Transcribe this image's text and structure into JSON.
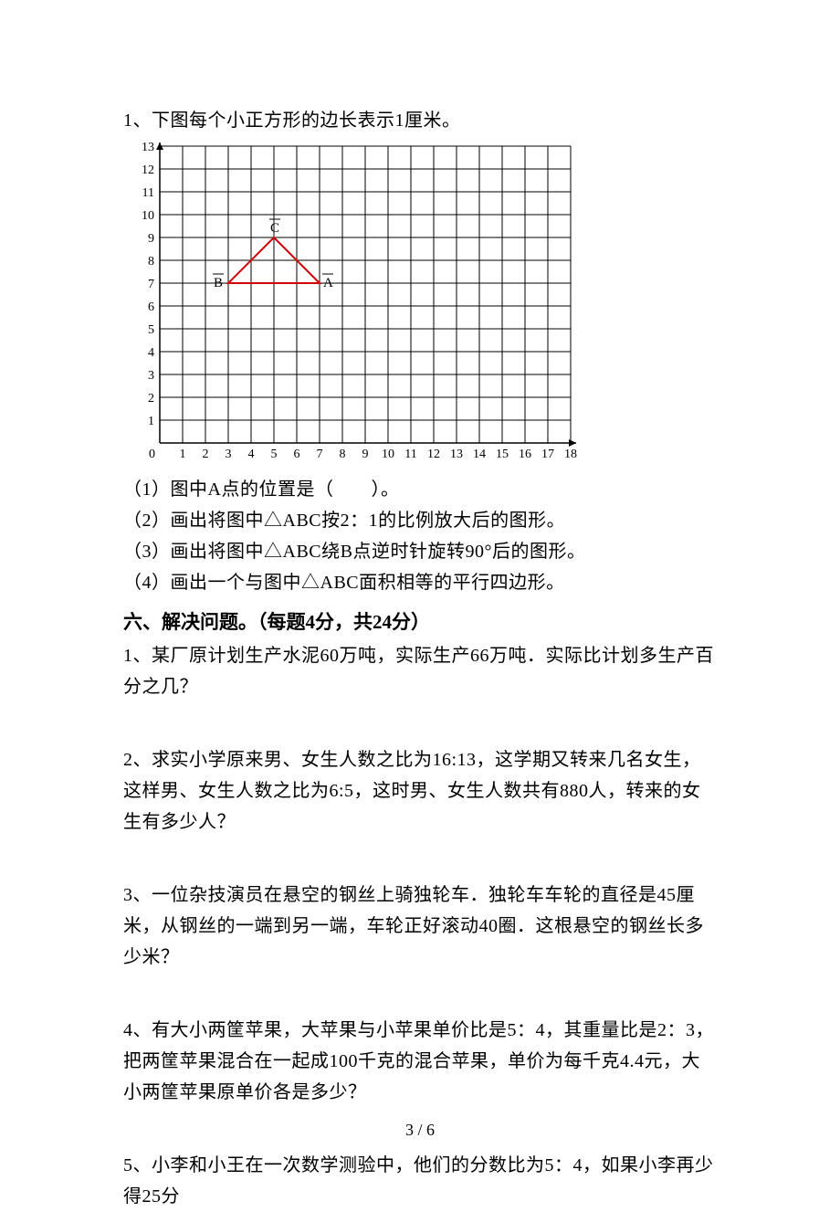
{
  "q1": {
    "prompt": "1、下图每个小正方形的边长表示1厘米。",
    "sub1": "（1）图中A点的位置是（　　）。",
    "sub2": "（2）画出将图中△ABC按2：1的比例放大后的图形。",
    "sub3": "（3）画出将图中△ABC绕B点逆时针旋转90°后的图形。",
    "sub4": "（4）画出一个与图中△ABC面积相等的平行四边形。"
  },
  "chart": {
    "x_max": 18,
    "y_max": 13,
    "cell": 25,
    "origin_label": "0",
    "x_ticks": [
      "1",
      "2",
      "3",
      "4",
      "5",
      "6",
      "7",
      "8",
      "9",
      "10",
      "11",
      "12",
      "13",
      "14",
      "15",
      "16",
      "17",
      "18"
    ],
    "y_ticks": [
      "1",
      "2",
      "3",
      "4",
      "5",
      "6",
      "7",
      "8",
      "9",
      "10",
      "11",
      "12",
      "13"
    ],
    "grid_color": "#000000",
    "triangle_color": "#d40000",
    "triangle_width": 2,
    "points": {
      "A": {
        "x": 7,
        "y": 7,
        "label": "A"
      },
      "B": {
        "x": 3,
        "y": 7,
        "label": "B"
      },
      "C": {
        "x": 5,
        "y": 9,
        "label": "C"
      }
    },
    "tick_fontsize": 14,
    "label_fontsize": 15
  },
  "section6": {
    "title": "六、解决问题。（每题4分，共24分）",
    "q1": "1、某厂原计划生产水泥60万吨，实际生产66万吨．实际比计划多生产百分之几？",
    "q2": "2、求实小学原来男、女生人数之比为16:13，这学期又转来几名女生，这样男、女生人数之比为6:5，这时男、女生人数共有880人，转来的女生有多少人？",
    "q3": "3、一位杂技演员在悬空的钢丝上骑独轮车．独轮车车轮的直径是45厘米，从钢丝的一端到另一端，车轮正好滚动40圈．这根悬空的钢丝长多少米？",
    "q4": "4、有大小两筐苹果，大苹果与小苹果单价比是5：4，其重量比是2：3，把两筐苹果混合在一起成100千克的混合苹果，单价为每千克4.4元，大小两筐苹果原单价各是多少？",
    "q5": "5、小李和小王在一次数学测验中，他们的分数比为5：4，如果小李再少得25分"
  },
  "footer": "3 / 6"
}
